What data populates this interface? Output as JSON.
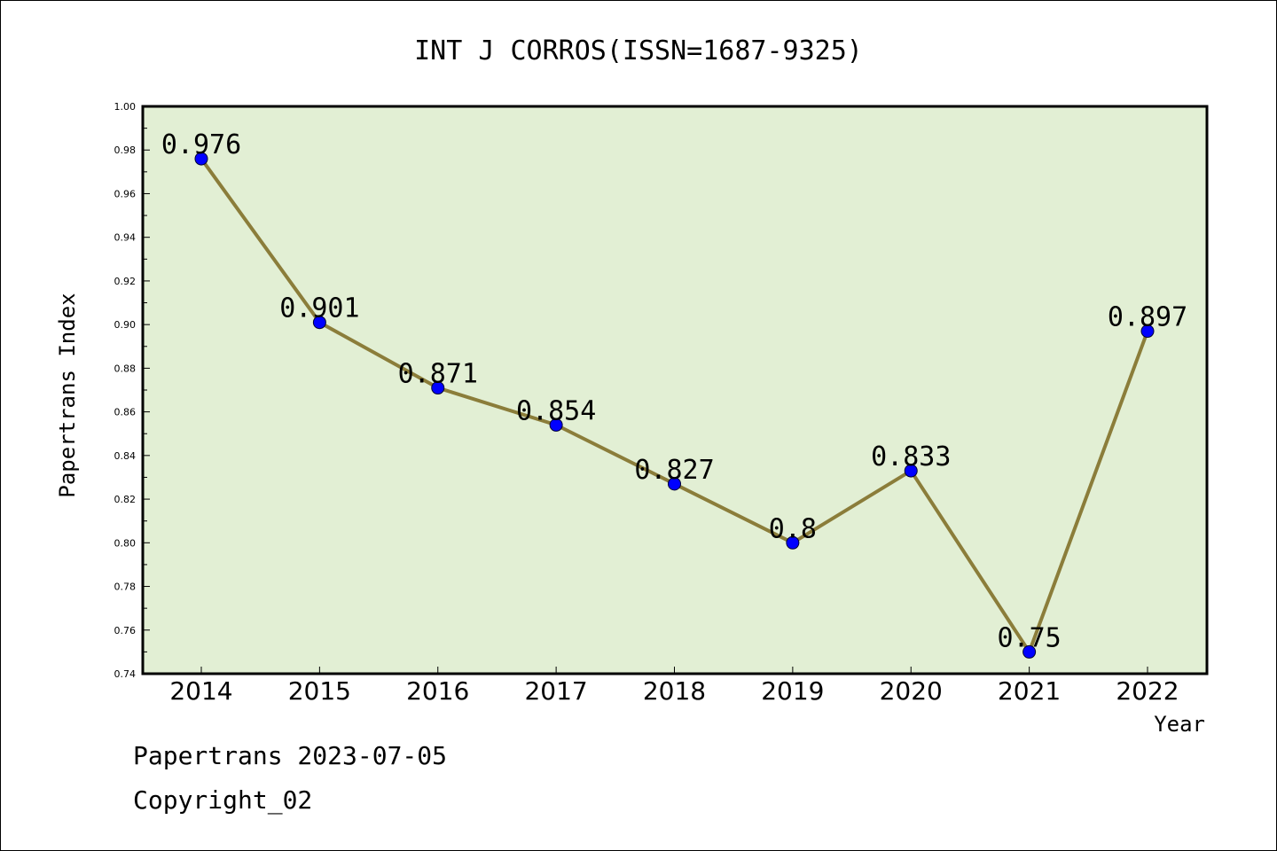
{
  "chart_data": {
    "type": "line",
    "title": "INT J CORROS(ISSN=1687-9325)",
    "xlabel": "Year",
    "ylabel": "Papertrans Index",
    "categories": [
      "2014",
      "2015",
      "2016",
      "2017",
      "2018",
      "2019",
      "2020",
      "2021",
      "2022"
    ],
    "values": [
      0.976,
      0.901,
      0.871,
      0.854,
      0.827,
      0.8,
      0.833,
      0.75,
      0.897
    ],
    "value_labels": [
      "0.976",
      "0.901",
      "0.871",
      "0.854",
      "0.827",
      "0.8",
      "0.833",
      "0.75",
      "0.897"
    ],
    "ylim": [
      0.74,
      1.0
    ],
    "y_ticks": [
      "0.74",
      "0.76",
      "0.78",
      "0.80",
      "0.82",
      "0.84",
      "0.86",
      "0.88",
      "0.90",
      "0.92",
      "0.94",
      "0.96",
      "0.98",
      "1.00"
    ],
    "grid": false,
    "colors": {
      "plot_background": "#e2efd4",
      "line": "#8b7d3a",
      "marker": "#0000ff"
    }
  },
  "footer": {
    "line1": "Papertrans 2023-07-05",
    "line2": "Copyright_02"
  }
}
